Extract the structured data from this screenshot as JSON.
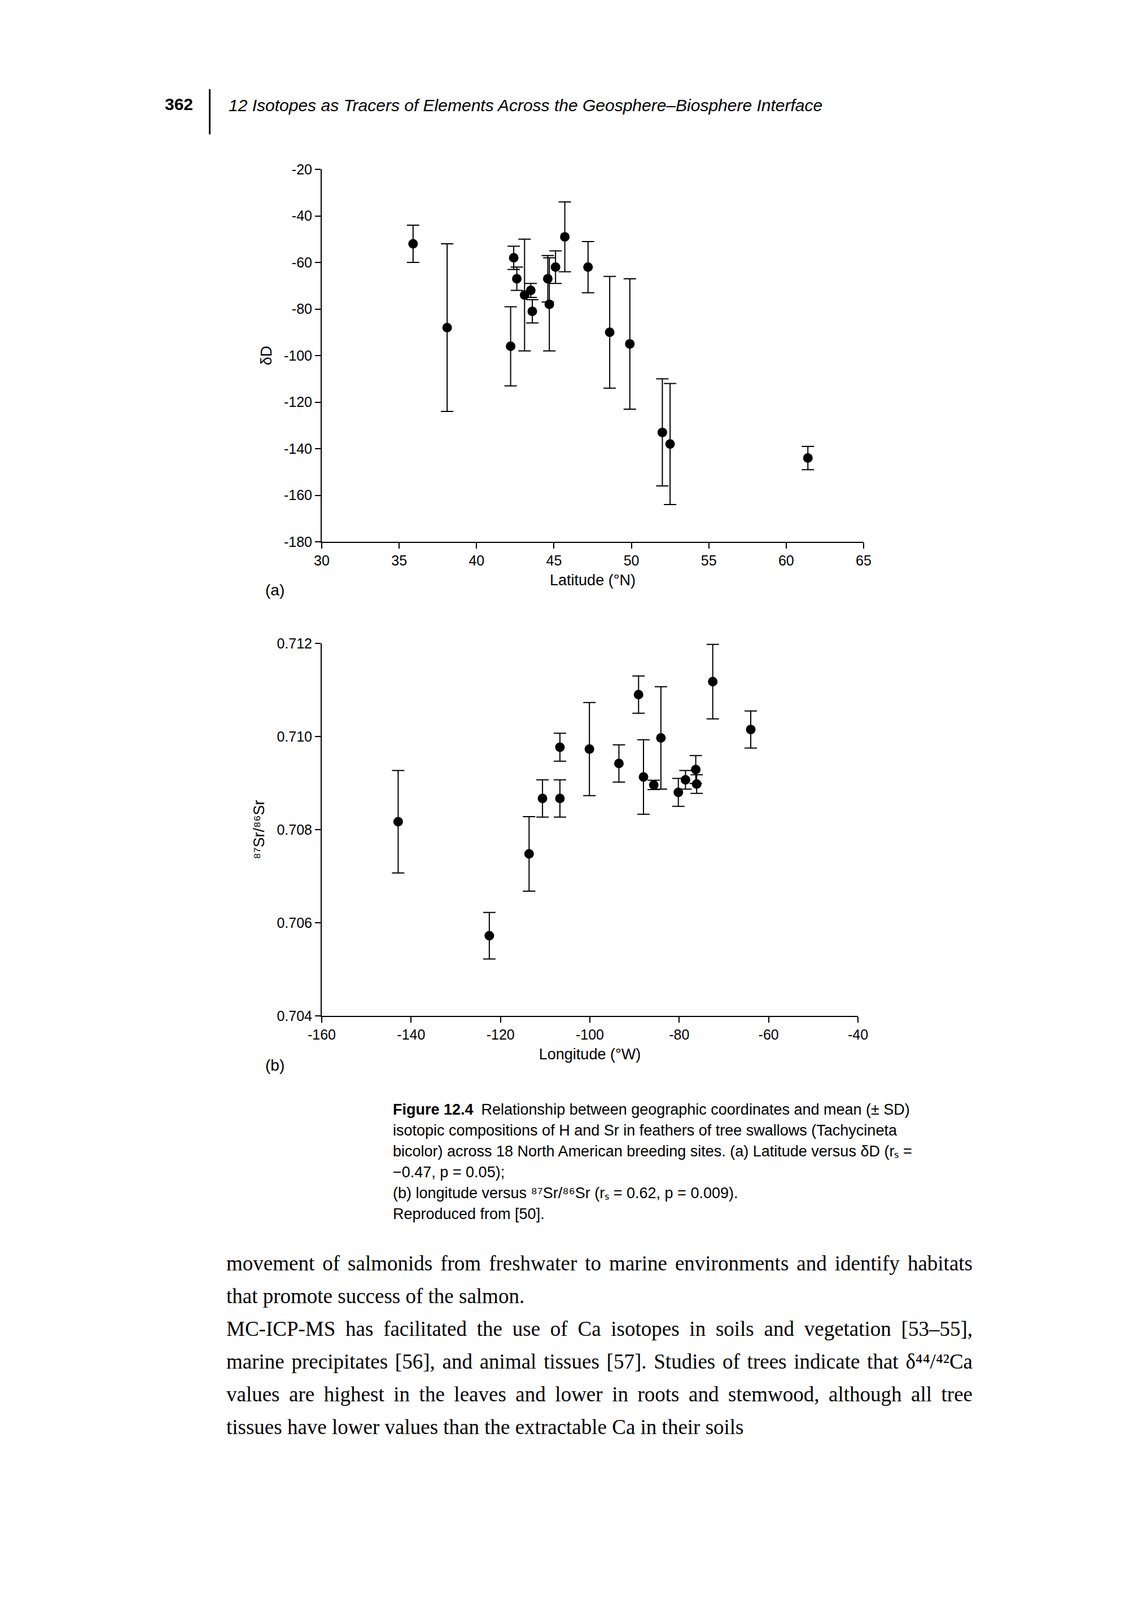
{
  "header": {
    "page_number": "362",
    "running_title": "12 Isotopes as Tracers of Elements Across the Geosphere–Biosphere Interface"
  },
  "chart_data": [
    {
      "type": "scatter",
      "label": "(a)",
      "x_label": "Latitude (°N)",
      "y_label": "δD",
      "color": "#000000",
      "marker": "circle",
      "x": [
        35.9,
        38.1,
        42.4,
        42.6,
        42.2,
        43.1,
        43.5,
        43.6,
        44.6,
        44.7,
        45.1,
        45.7,
        47.2,
        48.6,
        49.9,
        52.0,
        52.5,
        61.4
      ],
      "values": [
        -52,
        -88,
        -58,
        -67,
        -96,
        -74,
        -72,
        -81,
        -67,
        -78,
        -62,
        -49,
        -62,
        -90,
        -95,
        -133,
        -138,
        -144
      ],
      "sd": [
        8,
        36,
        5,
        5,
        17,
        24,
        3,
        5,
        10,
        20,
        7,
        15,
        11,
        24,
        28,
        23,
        26,
        5
      ],
      "xlim": [
        30,
        65
      ],
      "xticks": [
        30,
        35,
        40,
        45,
        50,
        55,
        60,
        65
      ],
      "ylim": [
        -180,
        -20
      ],
      "yticks": [
        -180,
        -160,
        -140,
        -120,
        -100,
        -80,
        -60,
        -40,
        -20
      ],
      "grid": false
    },
    {
      "type": "scatter",
      "label": "(b)",
      "x_label": "Longitude (°W)",
      "y_label": "⁸⁷Sr/⁸⁶Sr",
      "color": "#000000",
      "marker": "circle",
      "x": [
        -142.9,
        -122.5,
        -113.6,
        -110.6,
        -106.7,
        -106.7,
        -100.1,
        -93.5,
        -89.1,
        -88.0,
        -85.7,
        -84.1,
        -80.2,
        -78.6,
        -76.3,
        -76.1,
        -72.5,
        -64.0
      ],
      "values": [
        0.70817,
        0.70572,
        0.70748,
        0.70867,
        0.70867,
        0.70977,
        0.70973,
        0.70942,
        0.7109,
        0.70913,
        0.70896,
        0.70997,
        0.7088,
        0.70907,
        0.70929,
        0.70898,
        0.71118,
        0.71015
      ],
      "sd": [
        0.0011,
        0.0005,
        0.0008,
        0.0004,
        0.0004,
        0.0003,
        0.001,
        0.0004,
        0.0004,
        0.0008,
        0.0001,
        0.0011,
        0.0003,
        0.0002,
        0.0003,
        0.0002,
        0.0008,
        0.0004
      ],
      "xlim": [
        -160,
        -40
      ],
      "xticks": [
        -160,
        -140,
        -120,
        -100,
        -80,
        -60,
        -40
      ],
      "ylim": [
        0.704,
        0.712
      ],
      "yticks": [
        0.704,
        0.706,
        0.708,
        {
          "value": 0.71,
          "label": "0.710"
        },
        0.712
      ],
      "grid": false
    }
  ],
  "caption": {
    "label": "Figure 12.4",
    "lines": [
      "Relationship between geographic coordinates and mean (± SD) isotopic compositions of H and Sr in feathers of tree swallows (Tachycineta bicolor) across 18 North American breeding sites. (a) Latitude versus δD (rₛ = −0.47, p = 0.05);",
      "(b) longitude versus ⁸⁷Sr/⁸⁶Sr (rₛ = 0.62, p = 0.009).",
      "Reproduced from [50]."
    ]
  },
  "body": [
    "movement of salmonids from freshwater to marine environments and identify habitats that promote success of the salmon.",
    "MC-ICP-MS has facilitated the use of Ca isotopes in soils and vegetation [53–55], marine precipitates [56], and animal tissues [57]. Studies of trees indicate that δ⁴⁴/⁴²Ca values are highest in the leaves and lower in roots and stemwood, although all tree tissues have lower values than the extractable Ca in their soils"
  ]
}
